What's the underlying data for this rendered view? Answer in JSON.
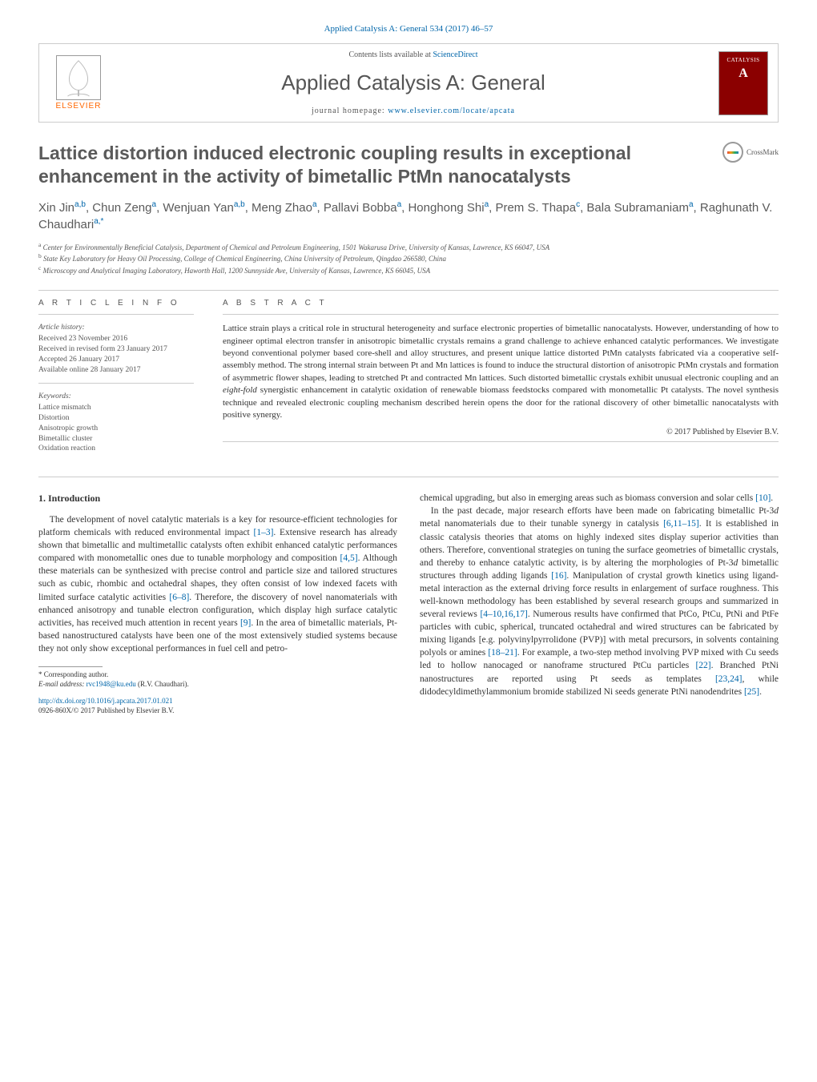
{
  "colors": {
    "link": "#0066aa",
    "text": "#333333",
    "muted": "#555555",
    "rule": "#cccccc",
    "elsevier_orange": "#ff6600",
    "cover": "#8b0000"
  },
  "typography": {
    "body_family": "Georgia, 'Times New Roman', serif",
    "sans_family": "Arial, sans-serif",
    "title_size_pt": 17,
    "journal_title_size_pt": 20,
    "body_size_pt": 9,
    "abstract_size_pt": 8,
    "affil_size_pt": 7
  },
  "header": {
    "journal_ref": "Applied Catalysis A: General 534 (2017) 46–57",
    "contents_prefix": "Contents lists available at ",
    "contents_link": "ScienceDirect",
    "journal_title": "Applied Catalysis A: General",
    "homepage_prefix": "journal homepage: ",
    "homepage_url": "www.elsevier.com/locate/apcata",
    "elsevier_label": "ELSEVIER",
    "cover_label": "CATALYSIS",
    "cover_letter": "A"
  },
  "crossmark": {
    "label": "CrossMark"
  },
  "article": {
    "title": "Lattice distortion induced electronic coupling results in exceptional enhancement in the activity of bimetallic PtMn nanocatalysts",
    "authors_html": "Xin Jin<sup>a,b</sup>, Chun Zeng<sup>a</sup>, Wenjuan Yan<sup>a,b</sup>, Meng Zhao<sup>a</sup>, Pallavi Bobba<sup>a</sup>, Honghong Shi<sup>a</sup>, Prem S. Thapa<sup>c</sup>, Bala Subramaniam<sup>a</sup>, Raghunath V. Chaudhari<sup>a,*</sup>",
    "affiliations": [
      {
        "key": "a",
        "text": "Center for Environmentally Beneficial Catalysis, Department of Chemical and Petroleum Engineering, 1501 Wakarusa Drive, University of Kansas, Lawrence, KS 66047, USA"
      },
      {
        "key": "b",
        "text": "State Key Laboratory for Heavy Oil Processing, College of Chemical Engineering, China University of Petroleum, Qingdao 266580, China"
      },
      {
        "key": "c",
        "text": "Microscopy and Analytical Imaging Laboratory, Haworth Hall, 1200 Sunnyside Ave, University of Kansas, Lawrence, KS 66045, USA"
      }
    ]
  },
  "article_info": {
    "heading": "a r t i c l e   i n f o",
    "history_label": "Article history:",
    "history": [
      "Received 23 November 2016",
      "Received in revised form 23 January 2017",
      "Accepted 26 January 2017",
      "Available online 28 January 2017"
    ],
    "keywords_label": "Keywords:",
    "keywords": [
      "Lattice mismatch",
      "Distortion",
      "Anisotropic growth",
      "Bimetallic cluster",
      "Oxidation reaction"
    ]
  },
  "abstract": {
    "heading": "a b s t r a c t",
    "text": "Lattice strain plays a critical role in structural heterogeneity and surface electronic properties of bimetallic nanocatalysts. However, understanding of how to engineer optimal electron transfer in anisotropic bimetallic crystals remains a grand challenge to achieve enhanced catalytic performances. We investigate beyond conventional polymer based core-shell and alloy structures, and present unique lattice distorted PtMn catalysts fabricated via a cooperative self-assembly method. The strong internal strain between Pt and Mn lattices is found to induce the structural distortion of anisotropic PtMn crystals and formation of asymmetric flower shapes, leading to stretched Pt and contracted Mn lattices. Such distorted bimetallic crystals exhibit unusual electronic coupling and an eight-fold synergistic enhancement in catalytic oxidation of renewable biomass feedstocks compared with monometallic Pt catalysts. The novel synthesis technique and revealed electronic coupling mechanism described herein opens the door for the rational discovery of other bimetallic nanocatalysts with positive synergy.",
    "copyright": "© 2017 Published by Elsevier B.V."
  },
  "body": {
    "section_heading": "1. Introduction",
    "p1": "The development of novel catalytic materials is a key for resource-efficient technologies for platform chemicals with reduced environmental impact [1–3]. Extensive research has already shown that bimetallic and multimetallic catalysts often exhibit enhanced catalytic performances compared with monometallic ones due to tunable morphology and composition [4,5]. Although these materials can be synthesized with precise control and particle size and tailored structures such as cubic, rhombic and octahedral shapes, they often consist of low indexed facets with limited surface catalytic activities [6–8]. Therefore, the discovery of novel nanomaterials with enhanced anisotropy and tunable electron configuration, which display high surface catalytic activities, has received much attention in recent years [9]. In the area of bimetallic materials, Pt-based nanostructured catalysts have been one of the most extensively studied systems because they not only show exceptional performances in fuel cell and petro-",
    "p2": "chemical upgrading, but also in emerging areas such as biomass conversion and solar cells [10].",
    "p3": "In the past decade, major research efforts have been made on fabricating bimetallic Pt-3d metal nanomaterials due to their tunable synergy in catalysis [6,11–15]. It is established in classic catalysis theories that atoms on highly indexed sites display superior activities than others. Therefore, conventional strategies on tuning the surface geometries of bimetallic crystals, and thereby to enhance catalytic activity, is by altering the morphologies of Pt-3d bimetallic structures through adding ligands [16]. Manipulation of crystal growth kinetics using ligand-metal interaction as the external driving force results in enlargement of surface roughness. This well-known methodology has been established by several research groups and summarized in several reviews [4–10,16,17]. Numerous results have confirmed that PtCo, PtCu, PtNi and PtFe particles with cubic, spherical, truncated octahedral and wired structures can be fabricated by mixing ligands [e.g. polyvinylpyrrolidone (PVP)] with metal precursors, in solvents containing polyols or amines [18–21]. For example, a two-step method involving PVP mixed with Cu seeds led to hollow nanocaged or nanoframe structured PtCu particles [22]. Branched PtNi nanostructures are reported using Pt seeds as templates [23,24], while didodecyldimethylammonium bromide stabilized Ni seeds generate PtNi nanodendrites [25].",
    "refs_in_text": [
      "[1–3]",
      "[4,5]",
      "[6–8]",
      "[9]",
      "[10]",
      "[6,11–15]",
      "[16]",
      "[4–10,16,17]",
      "[18–21]",
      "[22]",
      "[23,24]",
      "[25]"
    ]
  },
  "footnotes": {
    "corr_label": "* Corresponding author.",
    "email_label": "E-mail address:",
    "email": "rvc1948@ku.edu",
    "email_owner": "(R.V. Chaudhari)."
  },
  "doi": {
    "url": "http://dx.doi.org/10.1016/j.apcata.2017.01.021",
    "issn_line": "0926-860X/© 2017 Published by Elsevier B.V."
  }
}
